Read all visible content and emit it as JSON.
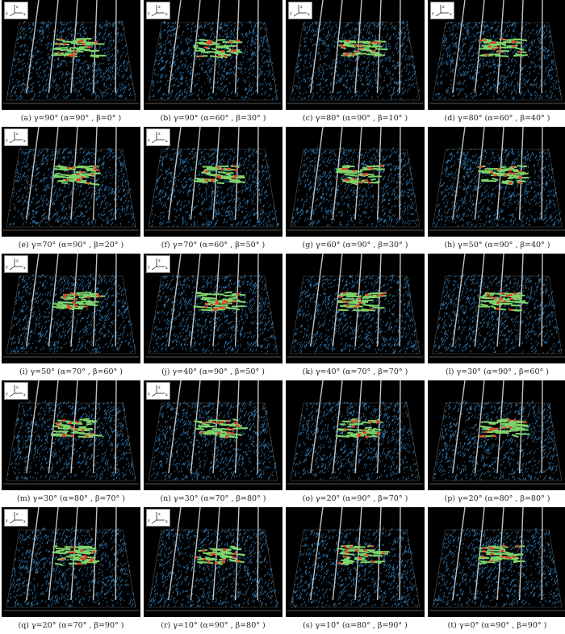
{
  "figure": {
    "panels": [
      {
        "caption": "(a) γ=90° (α=90° , β=0° )"
      },
      {
        "caption": "(b) γ=90° (α=60° , β=30° )"
      },
      {
        "caption": "(c) γ=80° (α=90° , β=10° )"
      },
      {
        "caption": "(d) γ=80° (α=60° , β=40° )"
      },
      {
        "caption": "(e) γ=70° (α=90° , β=20° )"
      },
      {
        "caption": "(f) γ=70° (α=60° , β=50° )"
      },
      {
        "caption": "(g) γ=60° (α=90° , β=30° )"
      },
      {
        "caption": "(h) γ=50° (α=90° , β=40° )"
      },
      {
        "caption": "(i) γ=50° (α=70° , β=60° )"
      },
      {
        "caption": "(j) γ=40° (α=90° , β=50° )"
      },
      {
        "caption": "(k) γ=40° (α=70° , β=70° )"
      },
      {
        "caption": "(l) γ=30° (α=90° , β=60° )"
      },
      {
        "caption": "(m) γ=30° (α=80° , β=70° )"
      },
      {
        "caption": "(n) γ=30° (α=70° , β=80° )"
      },
      {
        "caption": "(o) γ=20° (α=90° , β=70° )"
      },
      {
        "caption": "(p) γ=20° (α=80° , β=80° )"
      },
      {
        "caption": "(q) γ=20° (α=70° , β=90° )"
      },
      {
        "caption": "(r) γ=10° (α=90° , β=80° )"
      },
      {
        "caption": "(s) γ=10° (α=80° , β=90° )"
      },
      {
        "caption": "(t) γ=0° (α=90° , β=90° )"
      }
    ],
    "axis_labels": [
      "z",
      "y",
      "x"
    ],
    "colors": {
      "background": "#000000",
      "fractures": "#3a8fd0",
      "cluster": "#7fd46a",
      "cluster_hot": "#e8402a",
      "wells": "#d8d8d8"
    }
  }
}
